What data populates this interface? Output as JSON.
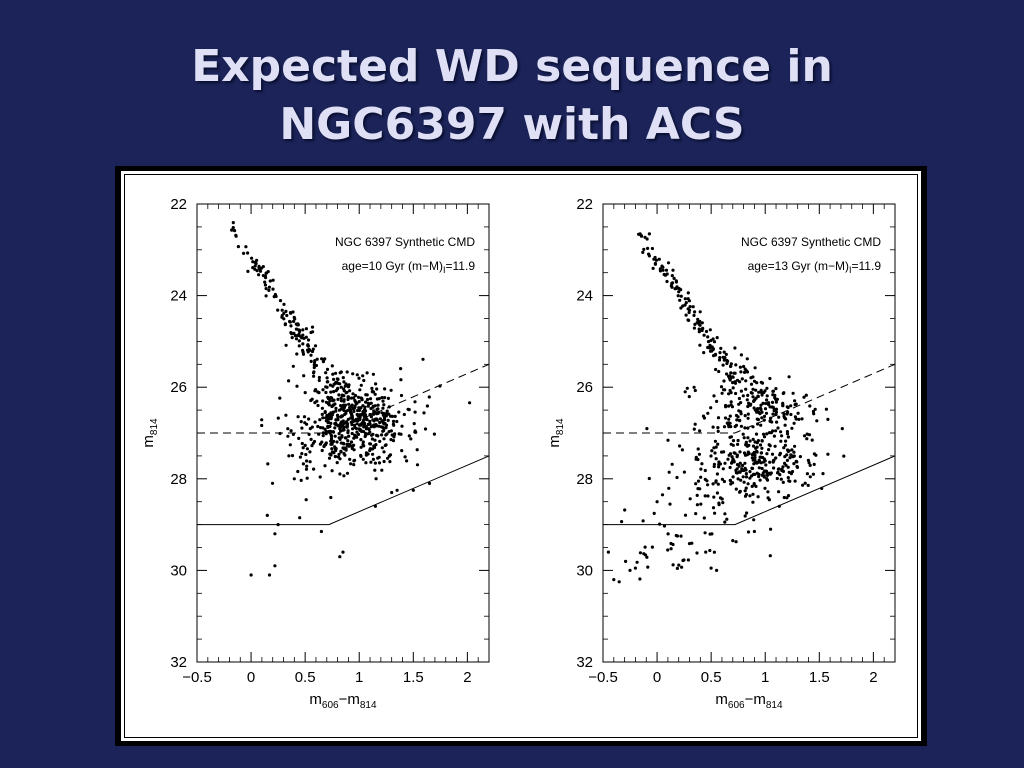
{
  "slide": {
    "title_line1": "Expected WD sequence in",
    "title_line2": "NGC6397 with ACS"
  },
  "colors": {
    "background": "#1b2358",
    "title": "#dfe0f6",
    "figure_bg": "#ffffff",
    "ink": "#000000"
  },
  "chart_data": [
    {
      "type": "scatter",
      "title": "",
      "annotation_line1": "NGC 6397 Synthetic CMD",
      "annotation_line2": "age=10 Gyr (m−M)",
      "annotation_sub": "I",
      "annotation_tail": "=11.9",
      "xlabel": "m",
      "xlabel_sub1": "606",
      "xlabel_mid": "−m",
      "xlabel_sub2": "814",
      "ylabel": "m",
      "ylabel_sub": "814",
      "xlim": [
        -0.5,
        2.2
      ],
      "ylim": [
        32,
        22
      ],
      "y_inverted": true,
      "x_ticks": [
        "−0.5",
        "0",
        "0.5",
        "1",
        "1.5",
        "2"
      ],
      "y_ticks": [
        "22",
        "24",
        "26",
        "28",
        "30",
        "32"
      ],
      "x_tick_values": [
        -0.5,
        0,
        0.5,
        1,
        1.5,
        2
      ],
      "y_tick_values": [
        22,
        24,
        26,
        28,
        30,
        32
      ],
      "dashed_line": [
        [
          -0.5,
          27.0
        ],
        [
          0.72,
          27.0
        ],
        [
          2.2,
          25.5
        ]
      ],
      "solid_line": [
        [
          -0.5,
          29.0
        ],
        [
          0.72,
          29.0
        ],
        [
          2.2,
          27.5
        ]
      ],
      "clusters": [
        {
          "kind": "track",
          "x0": -0.18,
          "y0": 22.5,
          "x1": 0.55,
          "y1": 25.2,
          "n": 90,
          "spread_x": 0.03,
          "spread_y": 0.08
        },
        {
          "kind": "track",
          "x0": 0.45,
          "y0": 24.8,
          "x1": 0.85,
          "y1": 26.3,
          "n": 80,
          "spread_x": 0.07,
          "spread_y": 0.15
        },
        {
          "kind": "blob",
          "cx": 0.95,
          "cy": 26.75,
          "sx": 0.25,
          "sy": 0.45,
          "n": 520
        },
        {
          "kind": "blob",
          "cx": 0.65,
          "cy": 27.3,
          "sx": 0.2,
          "sy": 0.5,
          "n": 60
        }
      ],
      "isolated_points": [
        [
          0.0,
          30.1
        ],
        [
          0.17,
          30.1
        ],
        [
          0.22,
          29.9
        ],
        [
          0.22,
          29.2
        ],
        [
          0.15,
          28.8
        ],
        [
          0.25,
          29.0
        ],
        [
          0.85,
          29.6
        ],
        [
          0.82,
          29.7
        ],
        [
          0.65,
          29.15
        ],
        [
          0.45,
          28.85
        ],
        [
          1.3,
          28.3
        ],
        [
          1.15,
          28.6
        ],
        [
          1.35,
          28.25
        ],
        [
          1.5,
          28.25
        ],
        [
          1.65,
          28.1
        ],
        [
          0.35,
          27.5
        ],
        [
          0.4,
          28.0
        ]
      ]
    },
    {
      "type": "scatter",
      "title": "",
      "annotation_line1": "NGC 6397 Synthetic CMD",
      "annotation_line2": "age=13 Gyr (m−M)",
      "annotation_sub": "I",
      "annotation_tail": "=11.9",
      "xlabel": "m",
      "xlabel_sub1": "606",
      "xlabel_mid": "−m",
      "xlabel_sub2": "814",
      "ylabel": "m",
      "ylabel_sub": "814",
      "xlim": [
        -0.5,
        2.2
      ],
      "ylim": [
        32,
        22
      ],
      "y_inverted": true,
      "x_ticks": [
        "−0.5",
        "0",
        "0.5",
        "1",
        "1.5",
        "2"
      ],
      "y_ticks": [
        "22",
        "24",
        "26",
        "28",
        "30",
        "32"
      ],
      "x_tick_values": [
        -0.5,
        0,
        0.5,
        1,
        1.5,
        2
      ],
      "y_tick_values": [
        22,
        24,
        26,
        28,
        30,
        32
      ],
      "dashed_line": [
        [
          -0.5,
          27.0
        ],
        [
          0.72,
          27.0
        ],
        [
          2.2,
          25.5
        ]
      ],
      "solid_line": [
        [
          -0.5,
          29.0
        ],
        [
          0.72,
          29.0
        ],
        [
          2.2,
          27.5
        ]
      ],
      "clusters": [
        {
          "kind": "track",
          "x0": -0.18,
          "y0": 22.6,
          "x1": 0.55,
          "y1": 25.2,
          "n": 95,
          "spread_x": 0.03,
          "spread_y": 0.08
        },
        {
          "kind": "track",
          "x0": 0.5,
          "y0": 25.0,
          "x1": 0.9,
          "y1": 26.2,
          "n": 80,
          "spread_x": 0.08,
          "spread_y": 0.15
        },
        {
          "kind": "blob",
          "cx": 0.95,
          "cy": 26.5,
          "sx": 0.3,
          "sy": 0.35,
          "n": 180
        },
        {
          "kind": "blob",
          "cx": 0.95,
          "cy": 27.6,
          "sx": 0.28,
          "sy": 0.35,
          "n": 260
        },
        {
          "kind": "blob",
          "cx": 0.6,
          "cy": 28.3,
          "sx": 0.22,
          "sy": 0.45,
          "n": 60
        },
        {
          "kind": "blob",
          "cx": 0.1,
          "cy": 29.4,
          "sx": 0.3,
          "sy": 0.35,
          "n": 45
        }
      ],
      "isolated_points": [
        [
          -0.45,
          29.6
        ],
        [
          -0.4,
          30.2
        ],
        [
          -0.35,
          30.25
        ],
        [
          -0.25,
          30.0
        ],
        [
          -0.2,
          29.95
        ],
        [
          0.0,
          28.5
        ],
        [
          0.05,
          28.35
        ],
        [
          0.5,
          29.95
        ],
        [
          0.55,
          30.0
        ],
        [
          0.7,
          29.35
        ],
        [
          0.9,
          29.15
        ],
        [
          1.05,
          29.1
        ],
        [
          0.45,
          29.6
        ]
      ]
    }
  ]
}
